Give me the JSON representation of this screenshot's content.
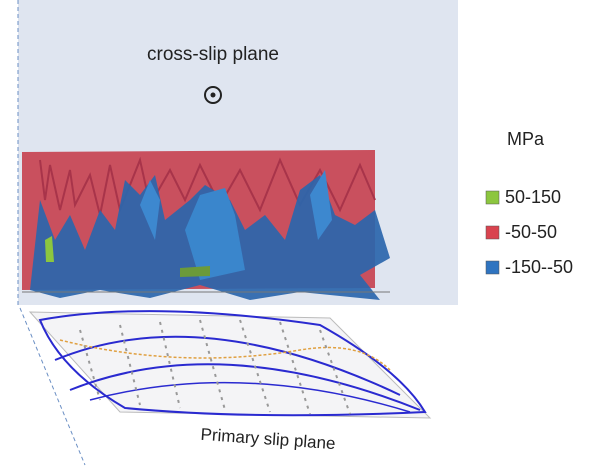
{
  "labels": {
    "top": "cross-slip plane",
    "bottom": "Primary slip plane"
  },
  "legend": {
    "title": "MPa",
    "items": [
      {
        "label": "50-150",
        "color": "#8cc63f"
      },
      {
        "label": "-50-50",
        "color": "#d9434f"
      },
      {
        "label": "-150--50",
        "color": "#2f74c0"
      }
    ]
  }
}
